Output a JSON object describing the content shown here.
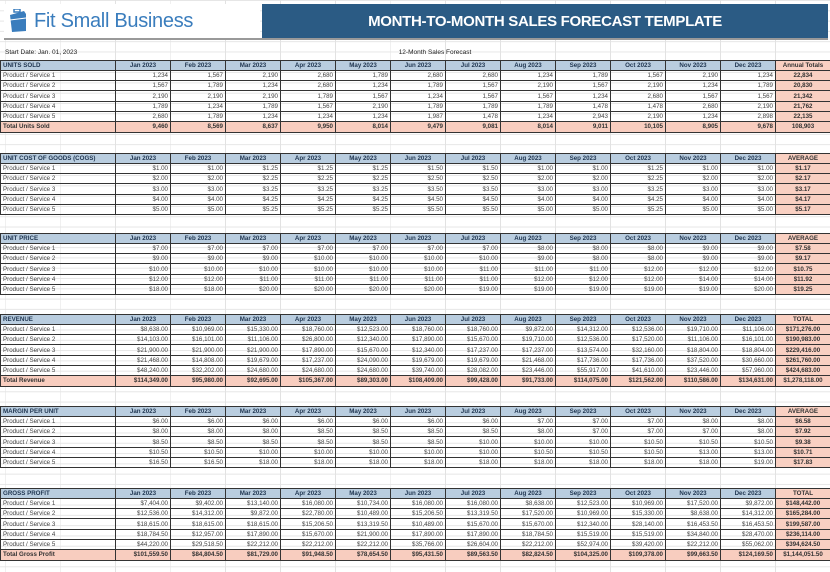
{
  "brand": {
    "name": "Fit Small Business",
    "color": "#3a7dbd",
    "icon": "briefcase-icon"
  },
  "title": "MONTH-TO-MONTH SALES FORECAST TEMPLATE",
  "start_date": "Start Date: Jan. 01, 2023",
  "subtitle": "12-Month Sales Forecast",
  "colors": {
    "title_bar": "#2b5b84",
    "header": "#b9cddf",
    "summary": "#f9d0c2"
  },
  "months": [
    "Jan 2023",
    "Feb 2023",
    "Mar 2023",
    "Apr 2023",
    "May 2023",
    "Jun 2023",
    "Jul 2023",
    "Aug 2023",
    "Sep 2023",
    "Oct 2023",
    "Nov 2023",
    "Dec 2023"
  ],
  "sections": [
    {
      "title": "UNITS SOLD",
      "summary_header": "Annual Totals",
      "rows": [
        {
          "label": "Product / Service 1",
          "values": [
            "1,234",
            "1,567",
            "2,190",
            "2,680",
            "1,789",
            "2,680",
            "2,680",
            "1,234",
            "1,789",
            "1,567",
            "2,190",
            "1,234"
          ],
          "summary": "22,834"
        },
        {
          "label": "Product / Service 2",
          "values": [
            "1,567",
            "1,789",
            "1,234",
            "2,680",
            "1,234",
            "1,789",
            "1,567",
            "2,190",
            "1,567",
            "2,190",
            "1,234",
            "1,789"
          ],
          "summary": "20,830"
        },
        {
          "label": "Product / Service 3",
          "values": [
            "2,190",
            "2,190",
            "2,190",
            "1,789",
            "1,567",
            "1,234",
            "1,567",
            "1,567",
            "1,234",
            "2,680",
            "1,567",
            "1,567"
          ],
          "summary": "21,342"
        },
        {
          "label": "Product / Service 4",
          "values": [
            "1,789",
            "1,234",
            "1,789",
            "1,567",
            "2,190",
            "1,789",
            "1,789",
            "1,789",
            "1,478",
            "1,478",
            "2,680",
            "2,190"
          ],
          "summary": "21,762"
        },
        {
          "label": "Product / Service 5",
          "values": [
            "2,680",
            "1,789",
            "1,234",
            "1,234",
            "1,234",
            "1,987",
            "1,478",
            "1,234",
            "2,943",
            "2,190",
            "1,234",
            "2,898"
          ],
          "summary": "22,135"
        }
      ],
      "total": {
        "label": "Total Units Sold",
        "values": [
          "9,460",
          "8,569",
          "8,637",
          "9,950",
          "8,014",
          "9,479",
          "9,081",
          "8,014",
          "9,011",
          "10,105",
          "8,905",
          "9,678"
        ],
        "summary": "108,903"
      }
    },
    {
      "title": "UNIT COST OF GOODS (COGS)",
      "summary_header": "AVERAGE",
      "rows": [
        {
          "label": "Product / Service 1",
          "values": [
            "$1.00",
            "$1.00",
            "$1.25",
            "$1.25",
            "$1.25",
            "$1.50",
            "$1.50",
            "$1.00",
            "$1.00",
            "$1.25",
            "$1.00",
            "$1.00"
          ],
          "summary": "$1.17"
        },
        {
          "label": "Product / Service 2",
          "values": [
            "$2.00",
            "$2.00",
            "$2.25",
            "$2.25",
            "$2.25",
            "$2.50",
            "$2.50",
            "$2.00",
            "$2.00",
            "$2.25",
            "$2.00",
            "$2.00"
          ],
          "summary": "$2.17"
        },
        {
          "label": "Product / Service 3",
          "values": [
            "$3.00",
            "$3.00",
            "$3.25",
            "$3.25",
            "$3.25",
            "$3.50",
            "$3.50",
            "$3.00",
            "$3.00",
            "$3.25",
            "$3.00",
            "$3.00"
          ],
          "summary": "$3.17"
        },
        {
          "label": "Product / Service 4",
          "values": [
            "$4.00",
            "$4.00",
            "$4.25",
            "$4.25",
            "$4.25",
            "$4.50",
            "$4.50",
            "$4.00",
            "$4.00",
            "$4.25",
            "$4.00",
            "$4.00"
          ],
          "summary": "$4.17"
        },
        {
          "label": "Product / Service 5",
          "values": [
            "$5.00",
            "$5.00",
            "$5.25",
            "$5.25",
            "$5.25",
            "$5.50",
            "$5.50",
            "$5.00",
            "$5.00",
            "$5.25",
            "$5.00",
            "$5.00"
          ],
          "summary": "$5.17"
        }
      ]
    },
    {
      "title": "UNIT PRICE",
      "summary_header": "AVERAGE",
      "rows": [
        {
          "label": "Product / Service 1",
          "values": [
            "$7.00",
            "$7.00",
            "$7.00",
            "$7.00",
            "$7.00",
            "$7.00",
            "$7.00",
            "$8.00",
            "$8.00",
            "$8.00",
            "$9.00",
            "$9.00"
          ],
          "summary": "$7.58"
        },
        {
          "label": "Product / Service 2",
          "values": [
            "$9.00",
            "$9.00",
            "$9.00",
            "$10.00",
            "$10.00",
            "$10.00",
            "$10.00",
            "$9.00",
            "$8.00",
            "$8.00",
            "$9.00",
            "$9.00"
          ],
          "summary": "$9.17"
        },
        {
          "label": "Product / Service 3",
          "values": [
            "$10.00",
            "$10.00",
            "$10.00",
            "$10.00",
            "$10.00",
            "$10.00",
            "$11.00",
            "$11.00",
            "$11.00",
            "$12.00",
            "$12.00",
            "$12.00"
          ],
          "summary": "$10.75"
        },
        {
          "label": "Product / Service 4",
          "values": [
            "$12.00",
            "$12.00",
            "$11.00",
            "$11.00",
            "$11.00",
            "$11.00",
            "$11.00",
            "$12.00",
            "$12.00",
            "$12.00",
            "$14.00",
            "$14.00"
          ],
          "summary": "$11.92"
        },
        {
          "label": "Product / Service 5",
          "values": [
            "$18.00",
            "$18.00",
            "$20.00",
            "$20.00",
            "$20.00",
            "$20.00",
            "$19.00",
            "$19.00",
            "$19.00",
            "$19.00",
            "$19.00",
            "$20.00"
          ],
          "summary": "$19.25"
        }
      ]
    },
    {
      "title": "REVENUE",
      "summary_header": "TOTAL",
      "rows": [
        {
          "label": "Product / Service 1",
          "values": [
            "$8,638.00",
            "$10,969.00",
            "$15,330.00",
            "$18,760.00",
            "$12,523.00",
            "$18,760.00",
            "$18,760.00",
            "$9,872.00",
            "$14,312.00",
            "$12,536.00",
            "$19,710.00",
            "$11,106.00"
          ],
          "summary": "$171,276.00"
        },
        {
          "label": "Product / Service 2",
          "values": [
            "$14,103.00",
            "$16,101.00",
            "$11,106.00",
            "$26,800.00",
            "$12,340.00",
            "$17,890.00",
            "$15,670.00",
            "$19,710.00",
            "$12,536.00",
            "$17,520.00",
            "$11,106.00",
            "$16,101.00"
          ],
          "summary": "$190,983.00"
        },
        {
          "label": "Product / Service 3",
          "values": [
            "$21,900.00",
            "$21,900.00",
            "$21,900.00",
            "$17,890.00",
            "$15,670.00",
            "$12,340.00",
            "$17,237.00",
            "$17,237.00",
            "$13,574.00",
            "$32,160.00",
            "$18,804.00",
            "$18,804.00"
          ],
          "summary": "$229,416.00"
        },
        {
          "label": "Product / Service 4",
          "values": [
            "$21,468.00",
            "$14,808.00",
            "$19,679.00",
            "$17,237.00",
            "$24,090.00",
            "$19,679.00",
            "$19,679.00",
            "$21,468.00",
            "$17,736.00",
            "$17,736.00",
            "$37,520.00",
            "$30,660.00"
          ],
          "summary": "$261,760.00"
        },
        {
          "label": "Product / Service 5",
          "values": [
            "$48,240.00",
            "$32,202.00",
            "$24,680.00",
            "$24,680.00",
            "$24,680.00",
            "$39,740.00",
            "$28,082.00",
            "$23,446.00",
            "$55,917.00",
            "$41,610.00",
            "$23,446.00",
            "$57,960.00"
          ],
          "summary": "$424,683.00"
        }
      ],
      "total": {
        "label": "Total Revenue",
        "values": [
          "$114,349.00",
          "$95,980.00",
          "$92,695.00",
          "$105,367.00",
          "$89,303.00",
          "$108,409.00",
          "$99,428.00",
          "$91,733.00",
          "$114,075.00",
          "$121,562.00",
          "$110,586.00",
          "$134,631.00"
        ],
        "summary": "$1,278,118.00"
      }
    },
    {
      "title": "MARGIN PER UNIT",
      "summary_header": "AVERAGE",
      "rows": [
        {
          "label": "Product / Service 1",
          "values": [
            "$6.00",
            "$6.00",
            "$6.00",
            "$6.00",
            "$6.00",
            "$6.00",
            "$6.00",
            "$7.00",
            "$7.00",
            "$7.00",
            "$8.00",
            "$8.00"
          ],
          "summary": "$6.58"
        },
        {
          "label": "Product / Service 2",
          "values": [
            "$8.00",
            "$8.00",
            "$8.00",
            "$8.50",
            "$8.50",
            "$8.50",
            "$8.50",
            "$8.00",
            "$7.00",
            "$7.00",
            "$7.00",
            "$8.00"
          ],
          "summary": "$7.92"
        },
        {
          "label": "Product / Service 3",
          "values": [
            "$8.50",
            "$8.50",
            "$8.50",
            "$8.50",
            "$8.50",
            "$8.50",
            "$10.00",
            "$10.00",
            "$10.00",
            "$10.50",
            "$10.50",
            "$10.50"
          ],
          "summary": "$9.38"
        },
        {
          "label": "Product / Service 4",
          "values": [
            "$10.50",
            "$10.50",
            "$10.00",
            "$10.00",
            "$10.00",
            "$10.00",
            "$10.00",
            "$10.50",
            "$10.50",
            "$10.50",
            "$13.00",
            "$13.00"
          ],
          "summary": "$10.71"
        },
        {
          "label": "Product / Service 5",
          "values": [
            "$16.50",
            "$16.50",
            "$18.00",
            "$18.00",
            "$18.00",
            "$18.00",
            "$18.00",
            "$18.00",
            "$18.00",
            "$18.00",
            "$18.00",
            "$19.00"
          ],
          "summary": "$17.83"
        }
      ]
    },
    {
      "title": "GROSS PROFIT",
      "summary_header": "TOTAL",
      "rows": [
        {
          "label": "Product / Service 1",
          "values": [
            "$7,404.00",
            "$9,402.00",
            "$13,140.00",
            "$16,080.00",
            "$10,734.00",
            "$16,080.00",
            "$16,080.00",
            "$8,638.00",
            "$12,523.00",
            "$10,969.00",
            "$17,520.00",
            "$9,872.00"
          ],
          "summary": "$148,442.00"
        },
        {
          "label": "Product / Service 2",
          "values": [
            "$12,536.00",
            "$14,312.00",
            "$9,872.00",
            "$22,780.00",
            "$10,489.00",
            "$15,206.50",
            "$13,319.50",
            "$17,520.00",
            "$10,969.00",
            "$15,330.00",
            "$8,638.00",
            "$14,312.00"
          ],
          "summary": "$165,284.00"
        },
        {
          "label": "Product / Service 3",
          "values": [
            "$18,615.00",
            "$18,615.00",
            "$18,615.00",
            "$15,206.50",
            "$13,319.50",
            "$10,489.00",
            "$15,670.00",
            "$15,670.00",
            "$12,340.00",
            "$28,140.00",
            "$16,453.50",
            "$16,453.50"
          ],
          "summary": "$199,587.00"
        },
        {
          "label": "Product / Service 4",
          "values": [
            "$18,784.50",
            "$12,957.00",
            "$17,890.00",
            "$15,670.00",
            "$21,900.00",
            "$17,890.00",
            "$17,890.00",
            "$18,784.50",
            "$15,519.00",
            "$15,519.00",
            "$34,840.00",
            "$28,470.00"
          ],
          "summary": "$236,114.00"
        },
        {
          "label": "Product / Service 5",
          "values": [
            "$44,220.00",
            "$29,518.50",
            "$22,212.00",
            "$22,212.00",
            "$22,212.00",
            "$35,766.00",
            "$26,604.00",
            "$22,212.00",
            "$52,974.00",
            "$39,420.00",
            "$22,212.00",
            "$55,062.00"
          ],
          "summary": "$394,624.50"
        }
      ],
      "total": {
        "label": "Total Gross Profit",
        "values": [
          "$101,559.50",
          "$84,804.50",
          "$81,729.00",
          "$91,948.50",
          "$78,654.50",
          "$95,431.50",
          "$89,563.50",
          "$82,824.50",
          "$104,325.00",
          "$109,378.00",
          "$99,663.50",
          "$124,169.50"
        ],
        "summary": "$1,144,051.50"
      }
    }
  ]
}
